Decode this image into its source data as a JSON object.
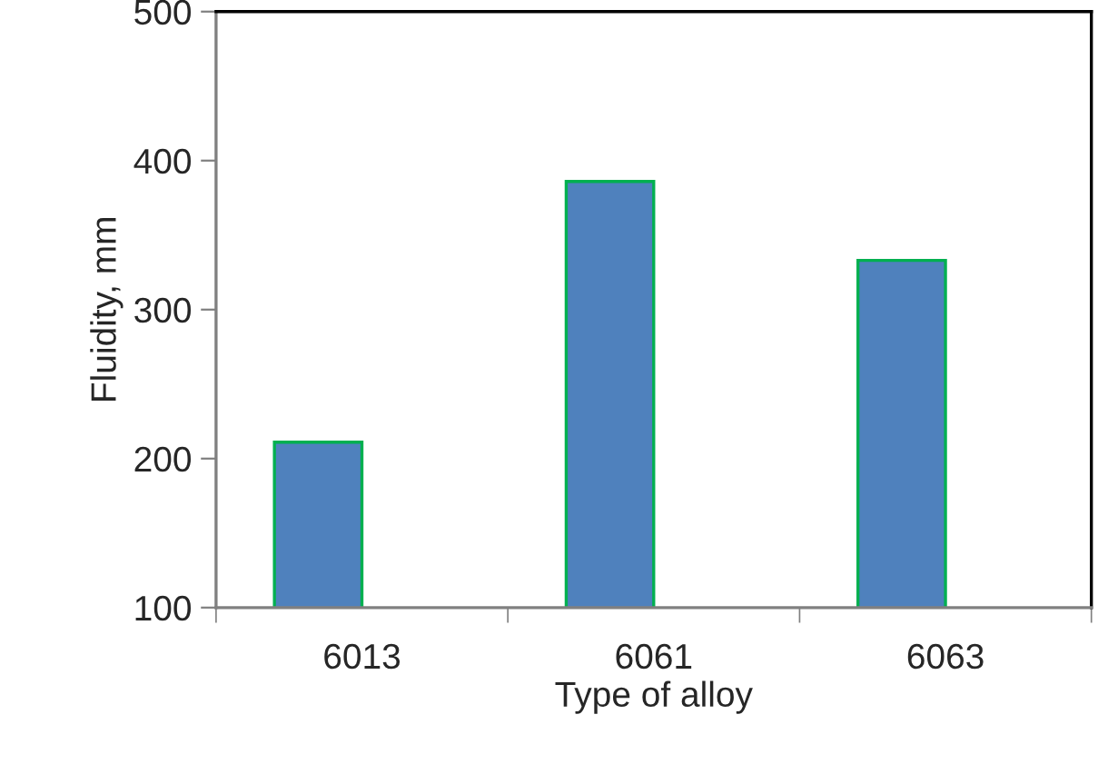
{
  "chart_data": {
    "type": "bar",
    "xlabel": "Type of alloy",
    "ylabel": "Fluidity, mm",
    "categories": [
      "6013",
      "6061",
      "6063"
    ],
    "series": [
      {
        "color": "#4f81bd",
        "values": [
          211,
          386,
          333
        ]
      }
    ],
    "ylim": [
      100,
      500
    ],
    "yticks": [
      100,
      200,
      300,
      400,
      500
    ],
    "grid": false,
    "legend": false
  }
}
